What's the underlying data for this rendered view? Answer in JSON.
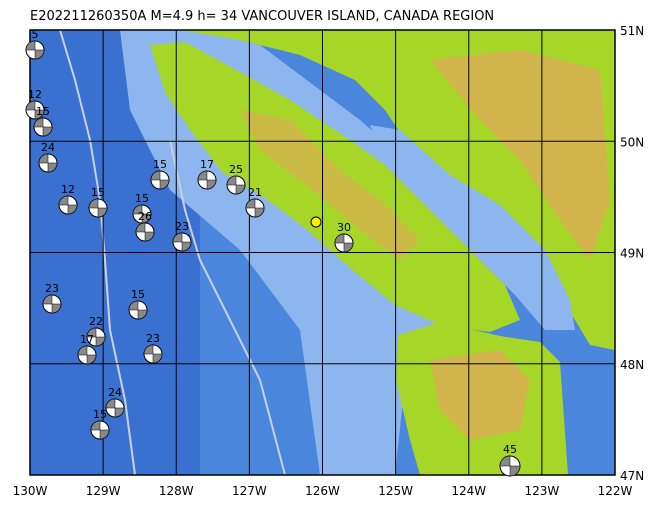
{
  "title": "E202211260350A M=4.9 h= 34 VANCOUVER ISLAND, CANADA REGION",
  "lon_labels": [
    "130W",
    "129W",
    "128W",
    "127W",
    "126W",
    "125W",
    "124W",
    "123W",
    "122W"
  ],
  "lat_labels": [
    "51N",
    "50N",
    "49N",
    "48N",
    "47N"
  ],
  "events": [
    {
      "label": "5"
    },
    {
      "label": "12"
    },
    {
      "label": "15"
    },
    {
      "label": "24"
    },
    {
      "label": "15"
    },
    {
      "label": "17"
    },
    {
      "label": "25"
    },
    {
      "label": "21"
    },
    {
      "label": "15"
    },
    {
      "label": "12"
    },
    {
      "label": "15"
    },
    {
      "label": "26"
    },
    {
      "label": "23"
    },
    {
      "label": "30"
    },
    {
      "label": "23"
    },
    {
      "label": "15"
    },
    {
      "label": "22"
    },
    {
      "label": "17"
    },
    {
      "label": "23"
    },
    {
      "label": "15"
    },
    {
      "label": "24"
    },
    {
      "label": "45"
    }
  ]
}
